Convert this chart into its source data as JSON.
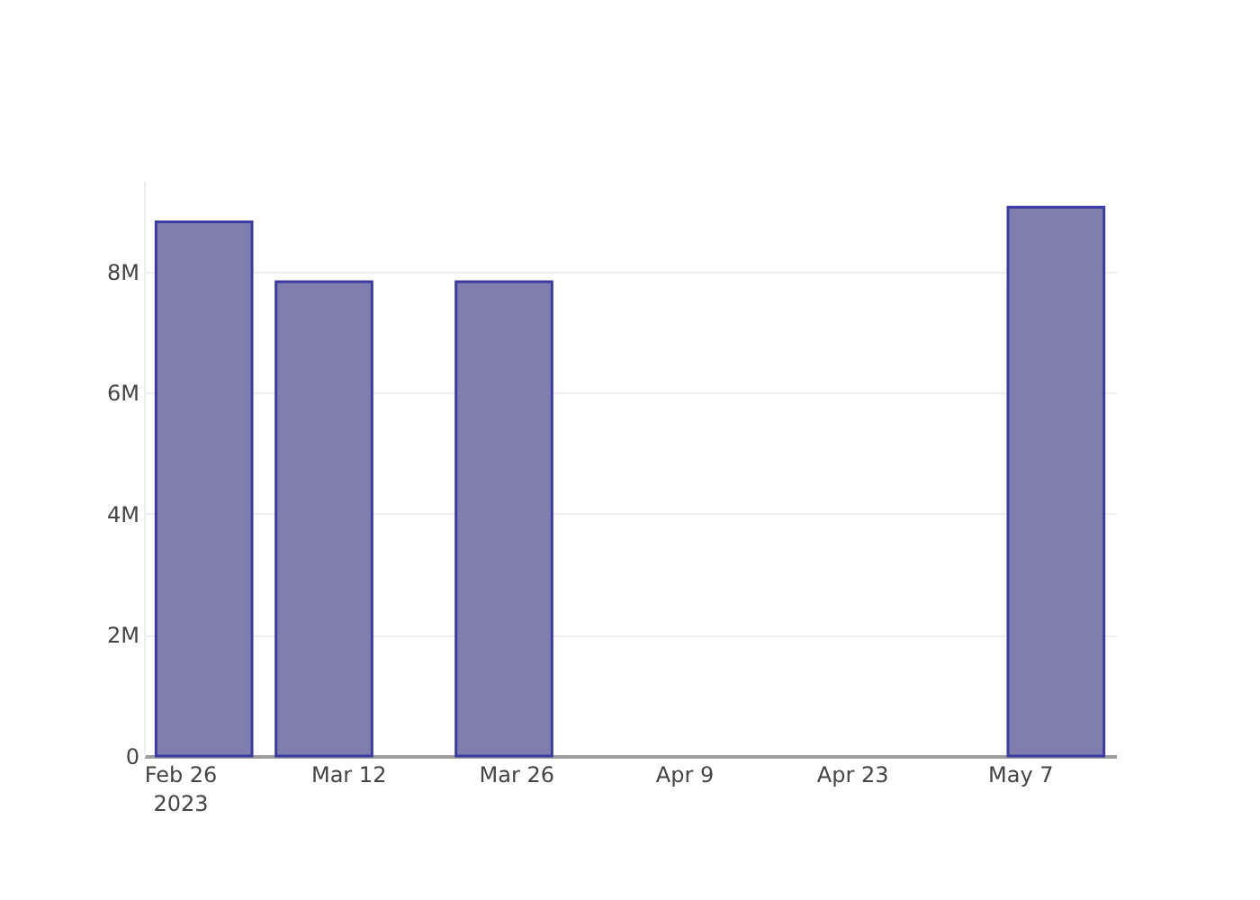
{
  "chart_data": {
    "type": "bar",
    "x": [
      "2023-02-28",
      "2023-03-10",
      "2023-03-25",
      "2023-05-10"
    ],
    "values": [
      8820000,
      7830000,
      7830000,
      9060000
    ],
    "color": "#7f7fae",
    "xlim": [
      "2023-02-23",
      "2023-05-15"
    ],
    "xticks": [
      {
        "value": "2023-02-26",
        "label": "Feb 26\n2023"
      },
      {
        "value": "2023-03-12",
        "label": "Mar 12"
      },
      {
        "value": "2023-03-26",
        "label": "Mar 26"
      },
      {
        "value": "2023-04-09",
        "label": "Apr 9"
      },
      {
        "value": "2023-04-23",
        "label": "Apr 23"
      },
      {
        "value": "2023-05-07",
        "label": "May 7"
      }
    ],
    "ylim": [
      0,
      9510000
    ],
    "yticks": [
      0,
      {
        "value": 2000000,
        "label": "2M"
      },
      {
        "value": 4000000,
        "label": "4M"
      },
      {
        "value": 6000000,
        "label": "6M"
      },
      {
        "value": 8000000,
        "label": "8M"
      }
    ],
    "grid": "y"
  }
}
